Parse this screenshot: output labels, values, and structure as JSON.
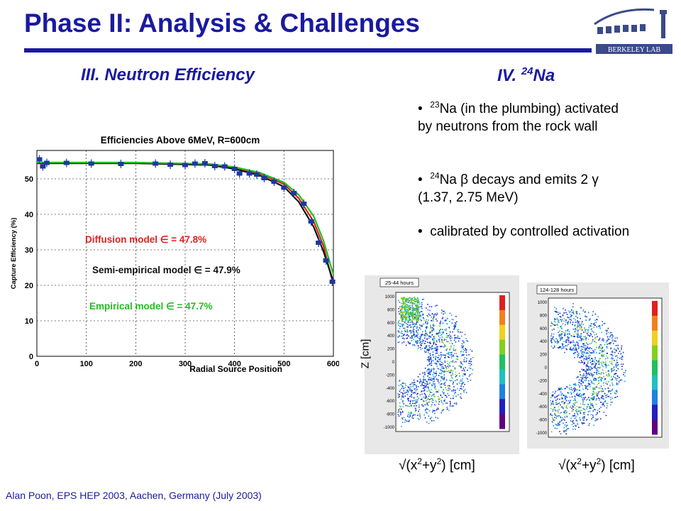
{
  "title": "Phase II: Analysis & Challenges",
  "logo": {
    "text": "BERKELEY LAB"
  },
  "sections": {
    "neutron": {
      "heading": "III. Neutron Efficiency"
    },
    "na24": {
      "heading_pre": "IV. ",
      "heading_sup": "24",
      "heading_post": "Na",
      "bullets": [
        {
          "sup": "23",
          "text": "Na (in the plumbing) activated by neutrons from the rock wall"
        },
        {
          "sup": "24",
          "pre": "Na ",
          "beta": "β",
          "mid": " decays and emits 2 ",
          "gamma": "γ",
          "post": " (1.37, 2.75 MeV)"
        },
        {
          "text": "calibrated by controlled activation"
        }
      ]
    }
  },
  "chart_data": {
    "type": "scatter",
    "title": "Efficiencies Above 6MeV, R=600cm",
    "xlabel": "Radial Source Position",
    "ylabel": "Capture Efficiency (%)",
    "xlim": [
      0,
      600
    ],
    "ylim": [
      0,
      58
    ],
    "xticks": [
      0,
      100,
      200,
      300,
      400,
      500,
      600
    ],
    "xtick_labels": [
      "0",
      "100",
      "200",
      "300",
      "400",
      "500",
      "600"
    ],
    "yticks": [
      0,
      10,
      20,
      30,
      40,
      50
    ],
    "ytick_labels": [
      "0",
      "10",
      "20",
      "30",
      "40",
      "50"
    ],
    "grid": true,
    "points": {
      "x": [
        5,
        12,
        20,
        60,
        110,
        170,
        240,
        270,
        300,
        320,
        340,
        360,
        380,
        400,
        410,
        430,
        445,
        460,
        480,
        500,
        520,
        540,
        555,
        570,
        585,
        598
      ],
      "y": [
        55.5,
        53.5,
        54.5,
        54.5,
        54.3,
        54.2,
        54.3,
        54.0,
        53.9,
        54.3,
        54.4,
        53.6,
        53.5,
        52.8,
        51.5,
        51.5,
        51.2,
        50.2,
        49.2,
        47.5,
        46.0,
        43.0,
        38.0,
        32.0,
        27.0,
        21.0
      ]
    },
    "series": [
      {
        "name": "Diffusion model",
        "color": "#e02020",
        "x": [
          0,
          200,
          350,
          400,
          450,
          500,
          530,
          560,
          580,
          600
        ],
        "y": [
          54.4,
          54.4,
          54.0,
          53.0,
          51.5,
          48.5,
          44.5,
          38.0,
          31.0,
          20.0
        ]
      },
      {
        "name": "Semi-empirical model",
        "color": "#111111",
        "x": [
          0,
          200,
          350,
          400,
          450,
          500,
          530,
          560,
          580,
          600
        ],
        "y": [
          54.4,
          54.4,
          53.9,
          52.8,
          51.0,
          47.8,
          43.5,
          36.5,
          29.5,
          21.0
        ]
      },
      {
        "name": "Empirical model",
        "color": "#20c020",
        "x": [
          0,
          200,
          350,
          400,
          450,
          500,
          530,
          560,
          580,
          600
        ],
        "y": [
          54.6,
          54.6,
          54.2,
          53.3,
          51.8,
          49.0,
          45.5,
          39.5,
          32.5,
          23.0
        ]
      }
    ],
    "annotations": [
      {
        "text": "Diffusion model ∈ = 47.8%",
        "color": "#e02020"
      },
      {
        "text": "Semi-empirical model ∈ = 47.9%",
        "color": "#111111"
      },
      {
        "text": "Empirical model ∈ = 47.7%",
        "color": "#20c020"
      }
    ]
  },
  "maps": {
    "left": {
      "label": "25-44 hours"
    },
    "right": {
      "label": "124-128 hours"
    },
    "zlabel": "Z [cm]",
    "xlabel_pre": "√(x",
    "xlabel_sup1": "2",
    "xlabel_mid": "+y",
    "xlabel_sup2": "2",
    "xlabel_post": ") [cm]",
    "y_ticks": [
      "1000",
      "800",
      "600",
      "400",
      "200",
      "0",
      "-200",
      "-400",
      "-600",
      "-800",
      "-1000"
    ]
  },
  "footer": "Alan Poon, EPS HEP 2003, Aachen, Germany (July 2003)"
}
